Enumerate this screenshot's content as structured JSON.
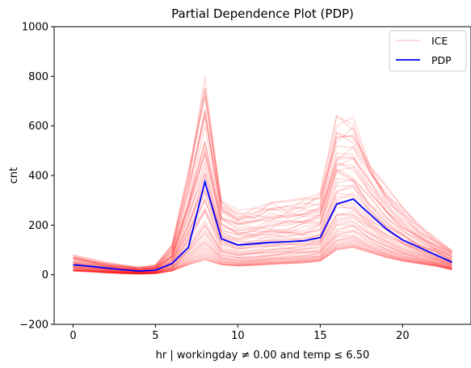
{
  "chart_data": {
    "type": "line",
    "title": "Partial Dependence Plot (PDP)",
    "xlabel": "hr | workingday ≠ 0.00 and temp ≤ 6.50",
    "ylabel": "cnt",
    "xlim": [
      -1.15,
      24.15
    ],
    "ylim": [
      -200,
      1000
    ],
    "xticks": [
      0,
      5,
      10,
      15,
      20
    ],
    "yticks": [
      -200,
      0,
      200,
      400,
      600,
      800,
      1000
    ],
    "grid": false,
    "legend_position": "top-right",
    "x": [
      0,
      1,
      2,
      3,
      4,
      5,
      6,
      7,
      8,
      9,
      10,
      11,
      12,
      13,
      14,
      15,
      16,
      17,
      18,
      19,
      20,
      21,
      22,
      23
    ],
    "series": [
      {
        "name": "PDP",
        "color": "#0000ff",
        "values": [
          40,
          34,
          27,
          20,
          15,
          18,
          45,
          110,
          375,
          145,
          120,
          125,
          130,
          133,
          137,
          150,
          285,
          305,
          245,
          185,
          140,
          110,
          80,
          50
        ]
      },
      {
        "name": "ICE",
        "color": "#ff0000",
        "style": "translucent band of individual curves",
        "upper_values": [
          80,
          65,
          50,
          40,
          30,
          40,
          120,
          420,
          800,
          320,
          260,
          275,
          290,
          300,
          310,
          330,
          640,
          635,
          480,
          360,
          270,
          200,
          150,
          100
        ],
        "lower_values": [
          15,
          12,
          8,
          5,
          3,
          5,
          15,
          40,
          60,
          40,
          35,
          38,
          42,
          45,
          48,
          55,
          100,
          110,
          90,
          70,
          55,
          45,
          35,
          20
        ]
      }
    ]
  }
}
